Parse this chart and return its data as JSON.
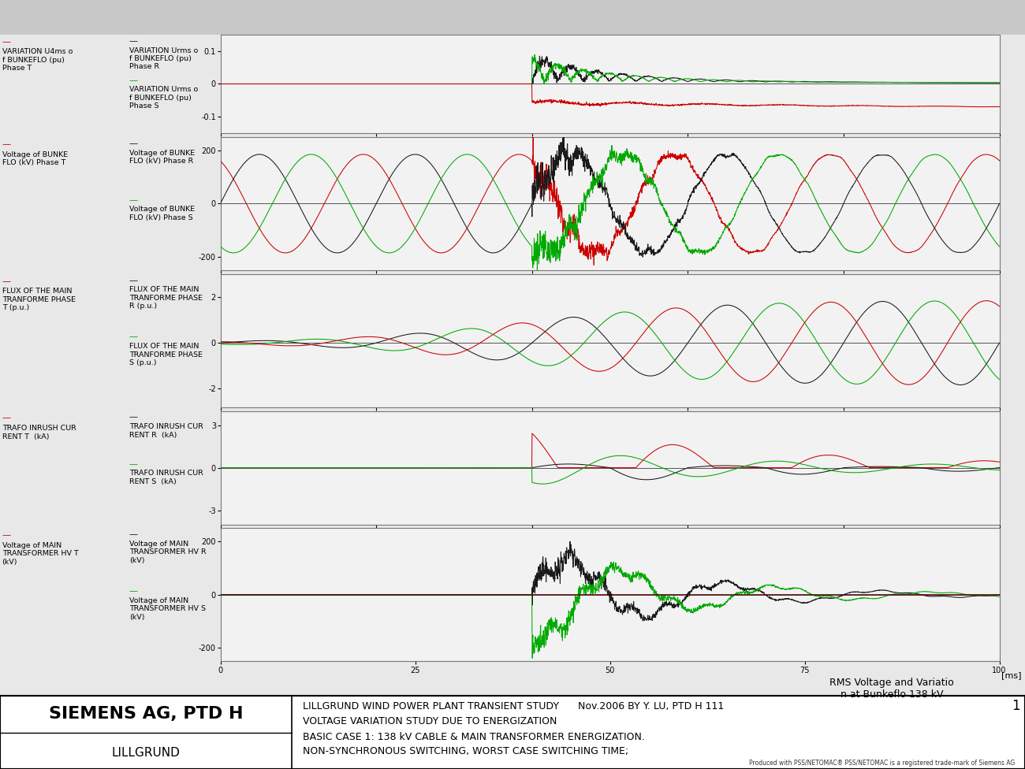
{
  "title_lower": "RMS Voltage and Variatio\nn at Bunkeflo 138 kV",
  "xlabel_ms": "[ms]",
  "x_ticks": [
    0,
    25,
    50,
    75,
    100
  ],
  "x_lim": [
    0,
    100
  ],
  "bg_color": "#dcdcdc",
  "plot_bg": "#f0f0f0",
  "footer_left1": "SIEMENS AG, PTD H",
  "footer_left2": "LILLGRUND",
  "footer_right1": "LILLGRUND WIND POWER PLANT TRANSIENT STUDY      Nov.2006 BY Y. LU, PTD H 111",
  "footer_right2": "VOLTAGE VARIATION STUDY DUE TO ENERGIZATION",
  "footer_right3": "BASIC CASE 1: 138 kV CABLE & MAIN TRANSFORMER ENERGIZATION.",
  "footer_right4": "NON-SYNCHRONOUS SWITCHING, WORST CASE SWITCHING TIME;",
  "footer_right5": "1",
  "produced_text": "Produced with PSS/NETOMAC® PSS/NETOMAC is a registered trade-mark of Siemens AG",
  "panels": [
    {
      "left_label": "VARIATION U4ms o\nf BUNKEFLO (pu)\nPhase T",
      "right_label_main": "VARIATION Urms o\nf BUNKEFLO (pu)\nPhase R",
      "right_label_sec": "VARIATION Urms o\nf BUNKEFLO (pu)\nPhase S",
      "ylim": [
        -0.15,
        0.15
      ],
      "yticks": [
        -0.1,
        0,
        0.1
      ],
      "ytick_labels": [
        "-0.1",
        "0",
        "0.1"
      ]
    },
    {
      "left_label": "Voltage of BUNKE\nFLO (kV) Phase T",
      "right_label_main": "Voltage of BUNKE\nFLO (kV) Phase R",
      "right_label_sec": "Voltage of BUNKE\nFLO (kV) Phase S",
      "ylim": [
        -250,
        250
      ],
      "yticks": [
        -200,
        0,
        200
      ],
      "ytick_labels": [
        "-200",
        "0",
        "200"
      ]
    },
    {
      "left_label": "FLUX OF THE MAIN\nTRANFORME PHASE\nT (p.u.)",
      "right_label_main": "FLUX OF THE MAIN\nTRANFORME PHASE\nR (p.u.)",
      "right_label_sec": "FLUX OF THE MAIN\nTRANFORME PHASE\nS (p.u.)",
      "ylim": [
        -2.8,
        3.0
      ],
      "yticks": [
        -2,
        0,
        2
      ],
      "ytick_labels": [
        "-2",
        "0",
        "2"
      ]
    },
    {
      "left_label": "TRAFO INRUSH CUR\nRENT T  (kA)",
      "right_label_main": "TRAFO INRUSH CUR\nRENT R  (kA)",
      "right_label_sec": "TRAFO INRUSH CUR\nRENT S  (kA)",
      "ylim": [
        -4.0,
        4.0
      ],
      "yticks": [
        -3,
        0,
        3
      ],
      "ytick_labels": [
        "-3",
        "0",
        "3"
      ]
    },
    {
      "left_label": "Voltage of MAIN\nTRANSFORMER HV T\n(kV)",
      "right_label_main": "Voltage of MAIN\nTRANSFORMER HV R\n(kV)",
      "right_label_sec": "Voltage of MAIN\nTRANSFORMER HV S\n(kV)",
      "ylim": [
        -250,
        250
      ],
      "yticks": [
        -200,
        0,
        200
      ],
      "ytick_labels": [
        "-200",
        "0",
        "200"
      ]
    }
  ],
  "switch_time": 40.0,
  "t_end": 100.0,
  "t_start": 0.0
}
